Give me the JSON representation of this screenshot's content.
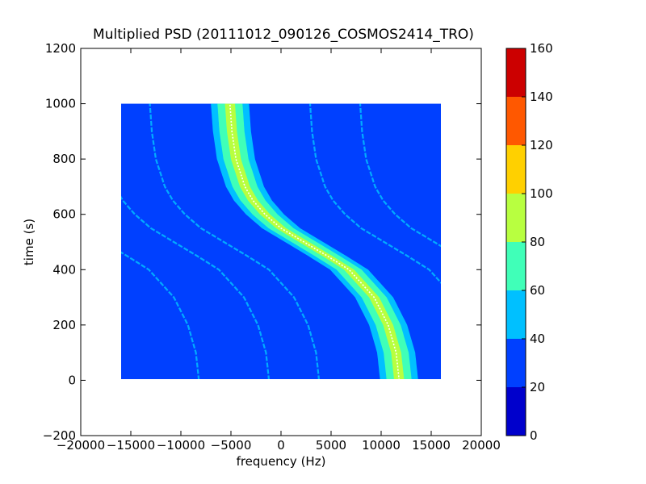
{
  "chart_data": {
    "type": "heatmap",
    "title": "Multiplied PSD (20111012_090126_COSMOS2414_TRO)",
    "xlabel": "frequency (Hz)",
    "ylabel": "time (s)",
    "xlim": [
      -20000,
      20000
    ],
    "ylim": [
      -200,
      1200
    ],
    "x_ticks": [
      -20000,
      -15000,
      -10000,
      -5000,
      0,
      5000,
      10000,
      15000,
      20000
    ],
    "x_tick_labels": [
      "−20000",
      "−15000",
      "−10000",
      "−5000",
      "0",
      "5000",
      "10000",
      "15000",
      "20000"
    ],
    "y_ticks": [
      -200,
      0,
      200,
      400,
      600,
      800,
      1000,
      1200
    ],
    "y_tick_labels": [
      "−200",
      "0",
      "200",
      "400",
      "600",
      "800",
      "1000",
      "1200"
    ],
    "data_extent": {
      "x": [
        -16000,
        16000
      ],
      "y": [
        0,
        1000
      ]
    },
    "background_value_range": [
      20,
      40
    ],
    "colorbar": {
      "levels": [
        0,
        20,
        40,
        60,
        80,
        100,
        120,
        140,
        160
      ],
      "tick_labels": [
        "0",
        "20",
        "40",
        "60",
        "80",
        "100",
        "120",
        "140",
        "160"
      ],
      "colors": [
        "#0000cc",
        "#0040ff",
        "#00c0ff",
        "#40ffb8",
        "#b8ff40",
        "#ffd000",
        "#ff5800",
        "#cc0000"
      ]
    },
    "main_band": {
      "center_freq_at_time": [
        [
          0,
          11800
        ],
        [
          100,
          11500
        ],
        [
          200,
          10700
        ],
        [
          300,
          9300
        ],
        [
          400,
          6800
        ],
        [
          450,
          4600
        ],
        [
          500,
          2300
        ],
        [
          550,
          0
        ],
        [
          600,
          -1600
        ],
        [
          650,
          -2800
        ],
        [
          700,
          -3600
        ],
        [
          800,
          -4500
        ],
        [
          900,
          -4900
        ],
        [
          1000,
          -5100
        ]
      ],
      "zones": [
        {
          "level_range": [
            40,
            60
          ],
          "half_width": 1900
        },
        {
          "level_range": [
            60,
            80
          ],
          "half_width": 1250
        },
        {
          "level_range": [
            80,
            100
          ],
          "half_width": 500
        }
      ]
    },
    "sidebands": [
      {
        "offset_hz": -20000
      },
      {
        "offset_hz": -13000
      },
      {
        "offset_hz": -8000
      },
      {
        "offset_hz": 8000
      },
      {
        "offset_hz": 13000
      }
    ]
  }
}
